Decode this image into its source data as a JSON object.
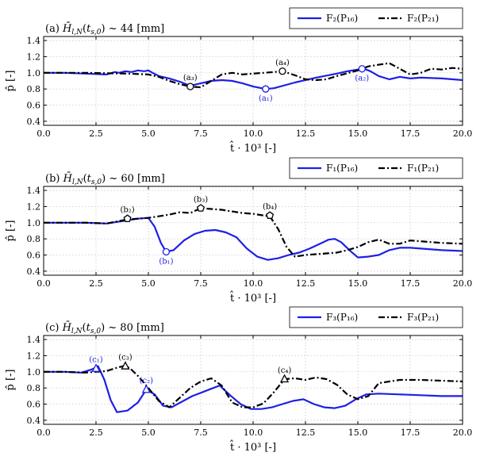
{
  "figure": {
    "colors": {
      "series_a": "#1f1fe6",
      "series_b": "#000000",
      "grid": "#cfcfcf"
    }
  },
  "chart_data": [
    {
      "id": "a",
      "type": "line",
      "title": "(a) H̄_{l,N}(t_{s,0}) ~ 44 [mm]",
      "xlabel": "t̂ · 10³ [-]",
      "ylabel": "p̂ [-]",
      "xlim": [
        0,
        20
      ],
      "ylim": [
        0.35,
        1.45
      ],
      "xticks": [
        "0.0",
        "2.5",
        "5.0",
        "7.5",
        "10.0",
        "12.5",
        "15.0",
        "17.5",
        "20.0"
      ],
      "yticks": [
        "0.4",
        "0.6",
        "0.8",
        "1.0",
        "1.2",
        "1.4"
      ],
      "legend": [
        "F₂(P₁₆)",
        "F₂(P₂₁)"
      ],
      "series": [
        {
          "name": "F2(P16)",
          "style": "solid",
          "x": [
            0,
            1,
            2,
            3,
            3.4,
            3.6,
            3.9,
            4.2,
            4.5,
            4.8,
            5.0,
            5.2,
            5.5,
            6.0,
            6.5,
            7.0,
            7.5,
            8.0,
            8.5,
            9.0,
            9.5,
            10.0,
            10.6,
            11.0,
            12.0,
            13.0,
            14.0,
            14.5,
            15.0,
            15.3,
            15.6,
            16.0,
            16.5,
            17.0,
            17.5,
            18.0,
            19.0,
            20.0
          ],
          "y": [
            1.0,
            1.0,
            0.99,
            0.98,
            1.01,
            1.0,
            1.02,
            1.01,
            1.03,
            1.02,
            1.03,
            1.0,
            0.96,
            0.93,
            0.89,
            0.84,
            0.87,
            0.9,
            0.91,
            0.9,
            0.87,
            0.83,
            0.8,
            0.81,
            0.88,
            0.94,
            0.99,
            1.02,
            1.04,
            1.05,
            1.02,
            0.96,
            0.92,
            0.95,
            0.93,
            0.94,
            0.93,
            0.91
          ]
        },
        {
          "name": "F2(P21)",
          "style": "dashdot",
          "x": [
            0,
            2,
            4,
            5,
            5.5,
            6.0,
            6.5,
            7.0,
            7.5,
            8.0,
            8.5,
            9.0,
            9.5,
            10.0,
            10.5,
            11.0,
            11.4,
            12.0,
            12.5,
            13.0,
            13.5,
            14.0,
            15.0,
            15.5,
            16.0,
            16.5,
            17.0,
            17.5,
            18.0,
            18.5,
            19.0,
            19.5,
            20.0
          ],
          "y": [
            1.0,
            1.0,
            0.99,
            0.98,
            0.95,
            0.9,
            0.86,
            0.83,
            0.82,
            0.9,
            0.98,
            1.0,
            0.98,
            0.99,
            1.0,
            1.01,
            1.02,
            0.97,
            0.92,
            0.91,
            0.92,
            0.96,
            1.03,
            1.08,
            1.1,
            1.12,
            1.05,
            0.98,
            1.0,
            1.05,
            1.04,
            1.06,
            1.05
          ]
        }
      ],
      "markers": [
        {
          "label": "(a₁)",
          "x": 10.6,
          "y": 0.8,
          "shape": "circle",
          "color": "#1f1fe6",
          "label_pos": "below"
        },
        {
          "label": "(a₂)",
          "x": 15.2,
          "y": 1.05,
          "shape": "circle",
          "color": "#1f1fe6",
          "label_pos": "below"
        },
        {
          "label": "(a₃)",
          "x": 7.0,
          "y": 0.83,
          "shape": "circle",
          "color": "#000000",
          "label_pos": "above"
        },
        {
          "label": "(a₄)",
          "x": 11.4,
          "y": 1.02,
          "shape": "circle",
          "color": "#000000",
          "label_pos": "above"
        }
      ]
    },
    {
      "id": "b",
      "type": "line",
      "title": "(b) H̄_{l,N}(t_{s,0}) ~ 60 [mm]",
      "xlabel": "t̂ · 10³ [-]",
      "ylabel": "p̂ [-]",
      "xlim": [
        0,
        20
      ],
      "ylim": [
        0.35,
        1.45
      ],
      "xticks": [
        "0.0",
        "2.5",
        "5.0",
        "7.5",
        "10.0",
        "12.5",
        "15.0",
        "17.5",
        "20.0"
      ],
      "yticks": [
        "0.4",
        "0.6",
        "0.8",
        "1.0",
        "1.2",
        "1.4"
      ],
      "legend": [
        "F₁(P₁₆)",
        "F₁(P₂₁)"
      ],
      "series": [
        {
          "name": "F1(P16)",
          "style": "solid",
          "x": [
            0,
            1,
            2,
            3,
            4,
            4.5,
            5.0,
            5.3,
            5.6,
            5.85,
            6.2,
            6.7,
            7.2,
            7.7,
            8.2,
            8.7,
            9.2,
            9.7,
            10.2,
            10.7,
            11.2,
            11.7,
            12.2,
            12.7,
            13.2,
            13.6,
            13.9,
            14.2,
            14.6,
            15.0,
            15.5,
            16.0,
            16.5,
            17.0,
            17.5,
            18,
            19,
            20
          ],
          "y": [
            1.0,
            1.0,
            1.0,
            0.99,
            1.03,
            1.05,
            1.06,
            0.95,
            0.75,
            0.64,
            0.66,
            0.78,
            0.86,
            0.9,
            0.91,
            0.88,
            0.82,
            0.68,
            0.58,
            0.54,
            0.56,
            0.6,
            0.63,
            0.68,
            0.74,
            0.79,
            0.8,
            0.76,
            0.66,
            0.57,
            0.58,
            0.6,
            0.66,
            0.69,
            0.69,
            0.68,
            0.66,
            0.65
          ]
        },
        {
          "name": "F1(P21)",
          "style": "dashdot",
          "x": [
            0,
            2,
            3,
            4,
            4.5,
            5.0,
            5.5,
            6.0,
            6.5,
            7.0,
            7.5,
            8.0,
            8.5,
            9.0,
            9.5,
            10.0,
            10.5,
            10.8,
            11.2,
            11.6,
            12.0,
            12.5,
            13,
            13.5,
            14,
            14.5,
            15,
            15.5,
            16,
            16.5,
            17,
            17.5,
            18,
            19,
            20
          ],
          "y": [
            1.0,
            1.0,
            0.99,
            1.04,
            1.05,
            1.06,
            1.08,
            1.1,
            1.13,
            1.12,
            1.18,
            1.17,
            1.16,
            1.14,
            1.12,
            1.11,
            1.09,
            1.08,
            0.92,
            0.7,
            0.58,
            0.6,
            0.61,
            0.62,
            0.63,
            0.66,
            0.7,
            0.76,
            0.79,
            0.74,
            0.74,
            0.78,
            0.77,
            0.75,
            0.74
          ]
        }
      ],
      "markers": [
        {
          "label": "(b₁)",
          "x": 5.85,
          "y": 0.64,
          "shape": "circle",
          "color": "#1f1fe6",
          "label_pos": "below"
        },
        {
          "label": "(b₂)",
          "x": 4.0,
          "y": 1.05,
          "shape": "pentagon",
          "color": "#000000",
          "label_pos": "above"
        },
        {
          "label": "(b₃)",
          "x": 7.5,
          "y": 1.18,
          "shape": "pentagon",
          "color": "#000000",
          "label_pos": "above"
        },
        {
          "label": "(b₄)",
          "x": 10.8,
          "y": 1.09,
          "shape": "pentagon",
          "color": "#000000",
          "label_pos": "above"
        }
      ]
    },
    {
      "id": "c",
      "type": "line",
      "title": "(c) H̄_{l,N}(t_{s,0}) ~ 80 [mm]",
      "xlabel": "t̂ · 10³ [-]",
      "ylabel": "p̂ [-]",
      "xlim": [
        0,
        20
      ],
      "ylim": [
        0.35,
        1.45
      ],
      "xticks": [
        "0.0",
        "2.5",
        "5.0",
        "7.5",
        "10.0",
        "12.5",
        "15.0",
        "17.5",
        "20.0"
      ],
      "yticks": [
        "0.4",
        "0.6",
        "0.8",
        "1.0",
        "1.2",
        "1.4"
      ],
      "legend": [
        "F₃(P₁₆)",
        "F₃(P₂₁)"
      ],
      "series": [
        {
          "name": "F3(P16)",
          "style": "solid",
          "x": [
            0,
            1,
            1.8,
            2.3,
            2.6,
            2.9,
            3.2,
            3.5,
            4.0,
            4.5,
            4.9,
            5.3,
            5.7,
            6.1,
            6.6,
            7.1,
            7.6,
            8.0,
            8.4,
            8.9,
            9.4,
            9.9,
            10.4,
            10.9,
            11.4,
            11.9,
            12.4,
            12.9,
            13.4,
            13.9,
            14.4,
            14.9,
            15.4,
            16,
            17,
            18,
            19,
            20
          ],
          "y": [
            1.0,
            1.0,
            0.99,
            1.03,
            1.07,
            0.9,
            0.65,
            0.5,
            0.52,
            0.62,
            0.78,
            0.72,
            0.58,
            0.56,
            0.63,
            0.7,
            0.75,
            0.79,
            0.83,
            0.71,
            0.6,
            0.54,
            0.54,
            0.56,
            0.6,
            0.64,
            0.66,
            0.6,
            0.56,
            0.55,
            0.58,
            0.66,
            0.72,
            0.73,
            0.72,
            0.71,
            0.7,
            0.7
          ]
        },
        {
          "name": "F3(P21)",
          "style": "dashdot",
          "x": [
            0,
            1,
            2,
            3,
            3.5,
            3.8,
            4.1,
            4.5,
            5.0,
            5.5,
            6.0,
            6.5,
            7.0,
            7.5,
            8.0,
            8.5,
            9.0,
            9.5,
            10.0,
            10.5,
            11.0,
            11.5,
            12.0,
            12.5,
            13.0,
            13.5,
            14.0,
            14.5,
            15.0,
            15.5,
            16,
            16.5,
            17,
            18,
            19,
            20
          ],
          "y": [
            1.0,
            1.0,
            0.99,
            1.01,
            1.05,
            1.07,
            1.05,
            0.95,
            0.8,
            0.64,
            0.56,
            0.68,
            0.8,
            0.88,
            0.92,
            0.83,
            0.62,
            0.56,
            0.56,
            0.61,
            0.75,
            0.91,
            0.92,
            0.9,
            0.93,
            0.91,
            0.84,
            0.72,
            0.66,
            0.7,
            0.86,
            0.88,
            0.9,
            0.9,
            0.89,
            0.88
          ]
        }
      ],
      "markers": [
        {
          "label": "(c₁)",
          "x": 2.5,
          "y": 1.04,
          "shape": "triangle",
          "color": "#1f1fe6",
          "label_pos": "above"
        },
        {
          "label": "(c₂)",
          "x": 4.9,
          "y": 0.78,
          "shape": "triangle",
          "color": "#1f1fe6",
          "label_pos": "above"
        },
        {
          "label": "(c₃)",
          "x": 3.9,
          "y": 1.07,
          "shape": "triangle",
          "color": "#000000",
          "label_pos": "above"
        },
        {
          "label": "(c₄)",
          "x": 11.5,
          "y": 0.91,
          "shape": "triangle",
          "color": "#000000",
          "label_pos": "above"
        }
      ]
    }
  ]
}
